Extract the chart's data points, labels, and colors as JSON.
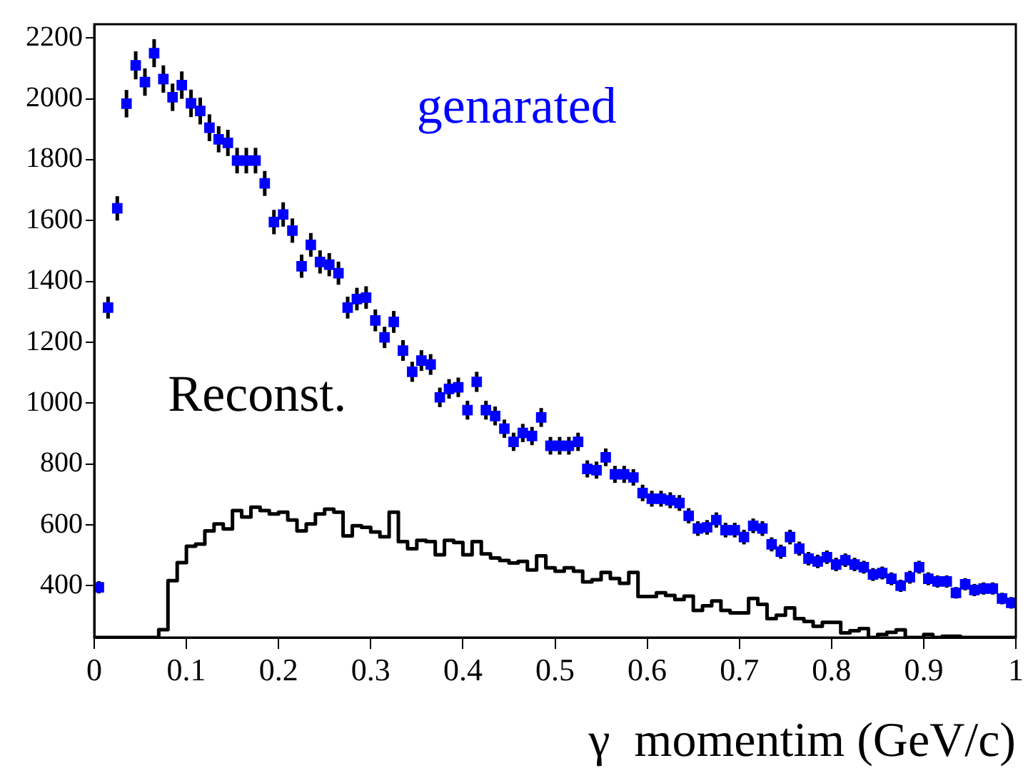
{
  "chart_data": {
    "type": "scatter",
    "xlabel": "γ  momentim (GeV/c)",
    "xlim": [
      0,
      1
    ],
    "ylim": [
      230,
      2245
    ],
    "xticks": [
      0,
      0.1,
      0.2,
      0.3,
      0.4,
      0.5,
      0.6,
      0.7,
      0.8,
      0.9,
      1
    ],
    "yticks": [
      400,
      600,
      800,
      1000,
      1200,
      1400,
      1600,
      1800,
      2000,
      2200
    ],
    "grid": false,
    "legend": false,
    "marker": "square",
    "series": [
      {
        "name": "genarated",
        "color": "#0000ff",
        "x": [
          0.005,
          0.015,
          0.025,
          0.035,
          0.045,
          0.055,
          0.065,
          0.075,
          0.085,
          0.095,
          0.105,
          0.115,
          0.125,
          0.135,
          0.145,
          0.155,
          0.165,
          0.175,
          0.185,
          0.195,
          0.205,
          0.215,
          0.225,
          0.235,
          0.245,
          0.255,
          0.265,
          0.275,
          0.285,
          0.295,
          0.305,
          0.315,
          0.325,
          0.335,
          0.345,
          0.355,
          0.365,
          0.375,
          0.385,
          0.395,
          0.405,
          0.415,
          0.425,
          0.435,
          0.445,
          0.455,
          0.465,
          0.475,
          0.485,
          0.495,
          0.505,
          0.515,
          0.525,
          0.535,
          0.545,
          0.555,
          0.565,
          0.575,
          0.585,
          0.595,
          0.605,
          0.615,
          0.625,
          0.635,
          0.645,
          0.655,
          0.665,
          0.675,
          0.685,
          0.695,
          0.705,
          0.715,
          0.725,
          0.735,
          0.745,
          0.755,
          0.765,
          0.775,
          0.785,
          0.795,
          0.805,
          0.815,
          0.825,
          0.835,
          0.845,
          0.855,
          0.865,
          0.875,
          0.885,
          0.895,
          0.905,
          0.915,
          0.925,
          0.935,
          0.945,
          0.955,
          0.965,
          0.975,
          0.985,
          0.995
        ],
        "values": [
          395,
          1314,
          1640,
          1984,
          2110,
          2055,
          2150,
          2065,
          2005,
          2045,
          1985,
          1960,
          1905,
          1867,
          1855,
          1797,
          1797,
          1797,
          1722,
          1595,
          1620,
          1567,
          1450,
          1520,
          1464,
          1455,
          1427,
          1314,
          1342,
          1347,
          1272,
          1216,
          1267,
          1173,
          1103,
          1140,
          1127,
          1019,
          1047,
          1052,
          977,
          1070,
          977,
          958,
          916,
          873,
          902,
          892,
          953,
          860,
          860,
          860,
          873,
          784,
          780,
          822,
          766,
          766,
          756,
          705,
          686,
          686,
          681,
          672,
          630,
          588,
          592,
          616,
          583,
          583,
          560,
          597,
          588,
          536,
          512,
          560,
          522,
          489,
          480,
          494,
          470,
          484,
          470,
          461,
          437,
          442,
          423,
          400,
          428,
          461,
          423,
          414,
          414,
          377,
          405,
          386,
          391,
          391,
          358,
          344
        ],
        "errors": [
          20,
          36,
          40,
          45,
          46,
          45,
          46,
          45,
          45,
          45,
          45,
          44,
          44,
          43,
          43,
          42,
          42,
          42,
          41,
          40,
          40,
          40,
          38,
          39,
          38,
          38,
          38,
          36,
          37,
          37,
          36,
          35,
          36,
          34,
          33,
          34,
          34,
          32,
          32,
          32,
          31,
          33,
          31,
          31,
          30,
          30,
          30,
          30,
          31,
          29,
          29,
          29,
          30,
          28,
          28,
          29,
          28,
          28,
          27,
          27,
          26,
          26,
          26,
          26,
          25,
          24,
          24,
          25,
          24,
          24,
          24,
          24,
          24,
          23,
          23,
          24,
          23,
          22,
          22,
          22,
          22,
          22,
          22,
          21,
          21,
          21,
          21,
          20,
          21,
          21,
          21,
          20,
          20,
          19,
          20,
          20,
          20,
          20,
          19,
          19
        ]
      },
      {
        "name": "Reconst.",
        "type": "histogram",
        "color": "#000000",
        "bins": [
          0,
          0.01,
          0.02,
          0.03,
          0.04,
          0.05,
          0.06,
          0.07,
          0.08,
          0.09,
          0.1,
          0.11,
          0.12,
          0.13,
          0.14,
          0.15,
          0.16,
          0.17,
          0.18,
          0.19,
          0.2,
          0.21,
          0.22,
          0.23,
          0.24,
          0.25,
          0.26,
          0.27,
          0.28,
          0.29,
          0.3,
          0.31,
          0.32,
          0.33,
          0.34,
          0.35,
          0.36,
          0.37,
          0.38,
          0.39,
          0.4,
          0.41,
          0.42,
          0.43,
          0.44,
          0.45,
          0.46,
          0.47,
          0.48,
          0.49,
          0.5,
          0.51,
          0.52,
          0.53,
          0.54,
          0.55,
          0.56,
          0.57,
          0.58,
          0.59,
          0.6,
          0.61,
          0.62,
          0.63,
          0.64,
          0.65,
          0.66,
          0.67,
          0.68,
          0.69,
          0.7,
          0.71,
          0.72,
          0.73,
          0.74,
          0.75,
          0.76,
          0.77,
          0.78,
          0.79,
          0.8,
          0.81,
          0.82,
          0.83,
          0.84,
          0.85,
          0.86,
          0.87,
          0.88,
          0.89,
          0.9,
          0.91,
          0.92,
          0.93,
          0.94,
          0.95,
          0.96,
          0.97,
          0.98,
          0.99,
          1
        ],
        "values": [
          null,
          null,
          null,
          null,
          null,
          null,
          null,
          256,
          417,
          476,
          530,
          537,
          580,
          603,
          587,
          647,
          626,
          658,
          647,
          636,
          642,
          616,
          580,
          603,
          636,
          652,
          642,
          564,
          597,
          592,
          577,
          561,
          642,
          545,
          522,
          549,
          545,
          502,
          549,
          542,
          502,
          545,
          505,
          491,
          483,
          475,
          480,
          452,
          498,
          459,
          448,
          459,
          448,
          413,
          420,
          444,
          424,
          408,
          444,
          365,
          365,
          377,
          368,
          355,
          366,
          319,
          334,
          350,
          319,
          311,
          311,
          358,
          339,
          292,
          303,
          327,
          292,
          283,
          267,
          280,
          280,
          245,
          252,
          259,
          null,
          240,
          247,
          255,
          null,
          null,
          240,
          null,
          234,
          234,
          null,
          null,
          null,
          null,
          null,
          null
        ]
      }
    ]
  }
}
